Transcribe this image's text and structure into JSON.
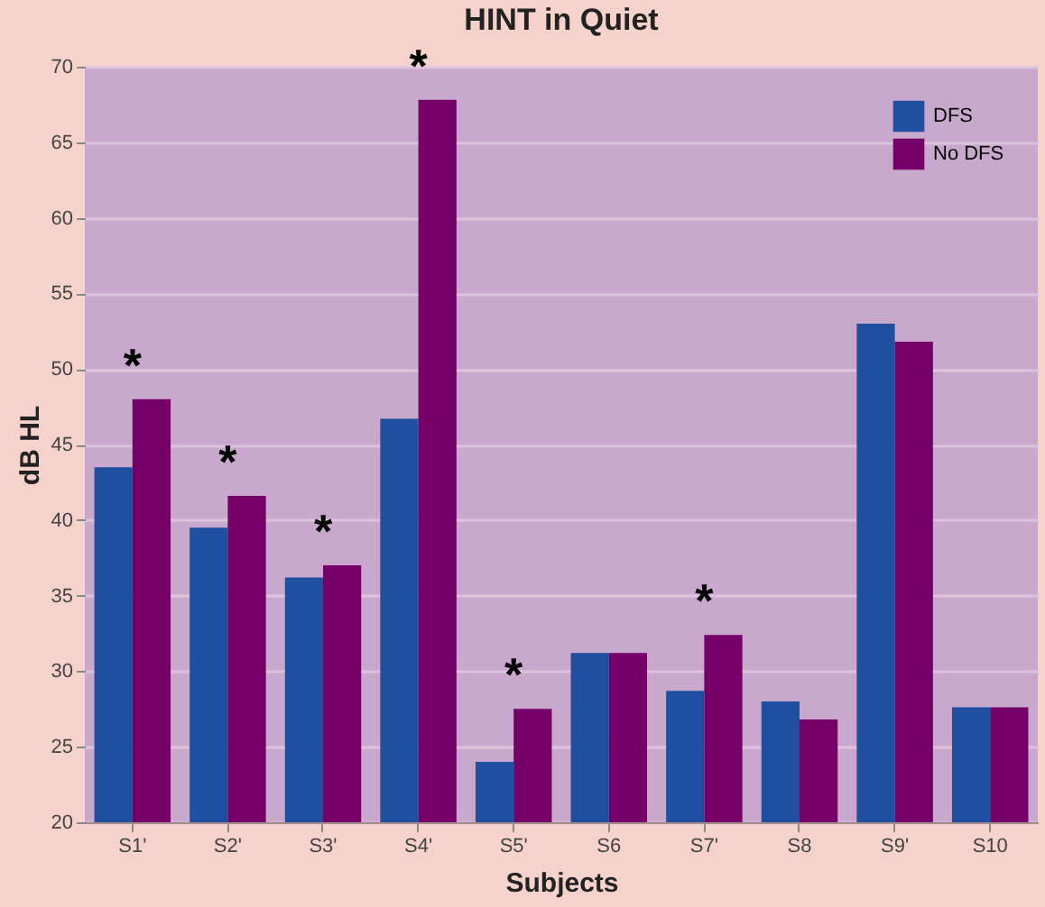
{
  "chart_data": {
    "type": "bar",
    "title": "HINT in Quiet",
    "xlabel": "Subjects",
    "ylabel": "dB HL",
    "categories": [
      "S1'",
      "S2'",
      "S3'",
      "S4'",
      "S5'",
      "S6",
      "S7'",
      "S8",
      "S9'",
      "S10"
    ],
    "series": [
      {
        "name": "DFS",
        "color": "#1f4fa0",
        "values": [
          43.5,
          39.5,
          36.2,
          46.7,
          24,
          31.2,
          28.7,
          28,
          53,
          27.6
        ]
      },
      {
        "name": "No DFS",
        "color": "#76006a",
        "values": [
          48,
          41.6,
          37,
          67.8,
          27.5,
          31.2,
          32.4,
          26.8,
          51.8,
          27.6
        ]
      }
    ],
    "ylim": [
      20,
      70
    ],
    "yticks": [
      20,
      25,
      30,
      35,
      40,
      45,
      50,
      55,
      60,
      65,
      70
    ],
    "grid": "y",
    "legend": "top right",
    "annotations": [
      {
        "text": "*",
        "x": "S1'",
        "y": 48
      },
      {
        "text": "*",
        "x": "S2'",
        "y": 41.6
      },
      {
        "text": "*",
        "x": "S3'",
        "y": 37
      },
      {
        "text": "*",
        "x": "S4'",
        "y": 67.8
      },
      {
        "text": "*",
        "x": "S5'",
        "y": 27.5
      },
      {
        "text": "*",
        "x": "S7'",
        "y": 32.4
      }
    ]
  }
}
